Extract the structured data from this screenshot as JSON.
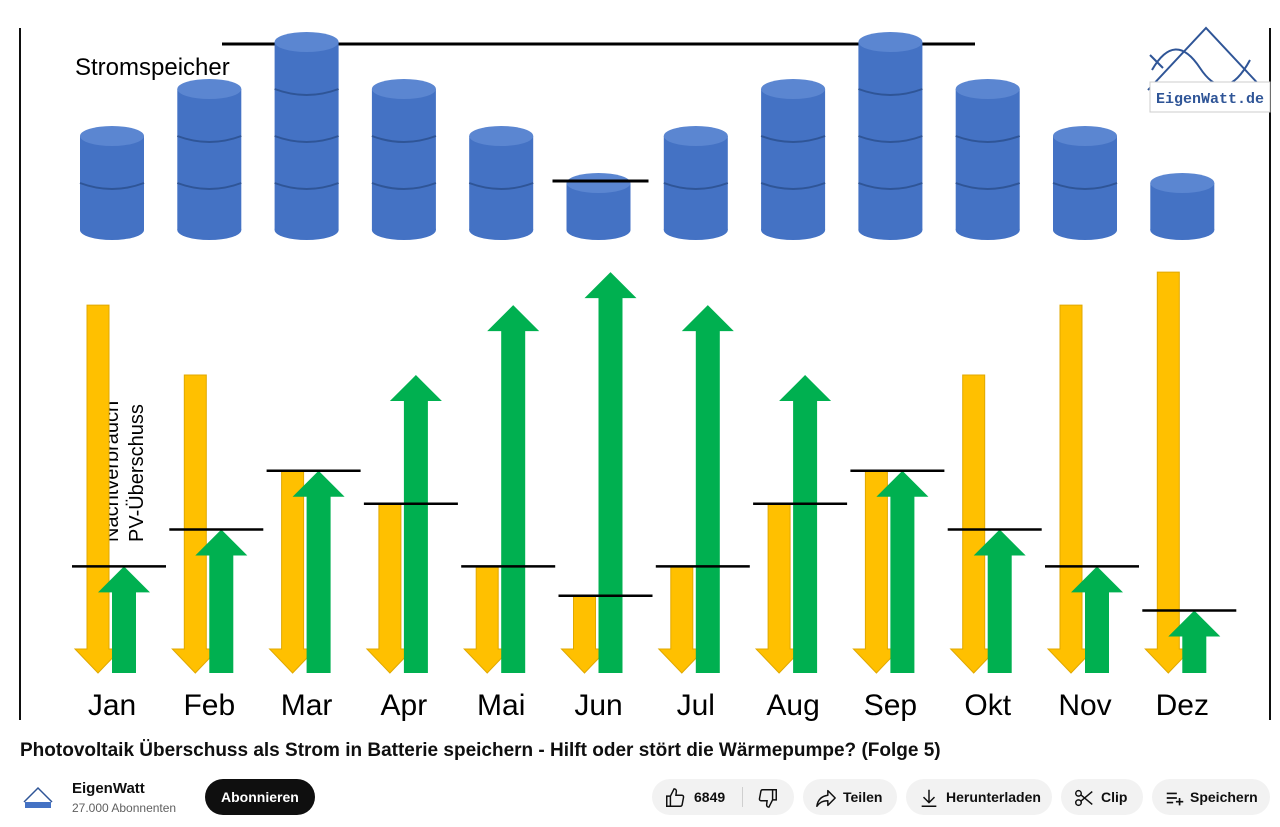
{
  "video": {
    "title": "Photovoltaik Überschuss als Strom in Batterie speichern - Hilft oder stört die Wärmepumpe? (Folge 5)"
  },
  "channel": {
    "name": "EigenWatt",
    "subscribers": "27.000 Abonnenten",
    "subscribe_label": "Abonnieren"
  },
  "actions": {
    "likes": "6849",
    "share_label": "Teilen",
    "download_label": "Herunterladen",
    "clip_label": "Clip",
    "save_label": "Speichern"
  },
  "colors": {
    "battery": "#4472c4",
    "battery_dark": "#2f5597",
    "night_consumption": "#ffc000",
    "pv_surplus": "#00b050"
  },
  "chart_data": {
    "type": "bar",
    "title": "Stromspeicher",
    "legend": [
      "Nachtverbrauch",
      "PV-Überschuss"
    ],
    "logo_text": "EigenWatt.de",
    "categories": [
      "Jan",
      "Feb",
      "Mar",
      "Apr",
      "Mai",
      "Jun",
      "Jul",
      "Aug",
      "Sep",
      "Okt",
      "Nov",
      "Dez"
    ],
    "series": [
      {
        "name": "Nachtverbrauch",
        "values": [
          100,
          81,
          55,
          46,
          29,
          21,
          29,
          46,
          55,
          81,
          100,
          109
        ]
      },
      {
        "name": "PV-Überschuss",
        "values": [
          29,
          39,
          55,
          81,
          100,
          109,
          100,
          81,
          55,
          39,
          29,
          17
        ]
      }
    ],
    "battery_segments": [
      2,
      3,
      4,
      3,
      2,
      1,
      2,
      3,
      4,
      3,
      2,
      1
    ],
    "ylim": [
      0,
      115
    ]
  }
}
